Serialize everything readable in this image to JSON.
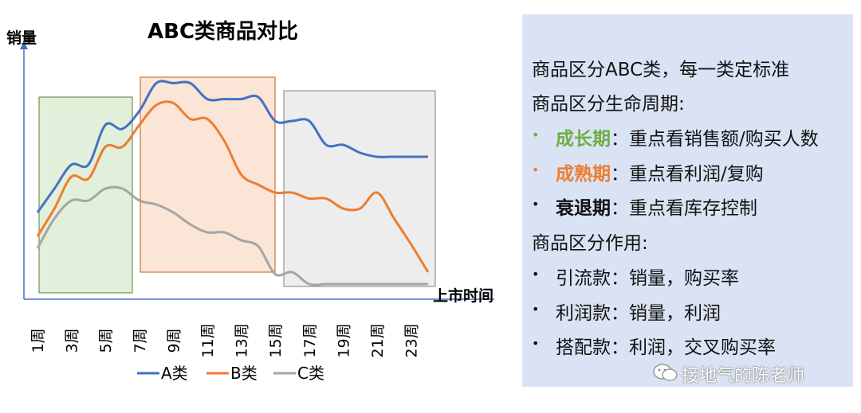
{
  "chart_data": {
    "type": "line",
    "title": "ABC类商品对比",
    "ylabel": "销量",
    "xlabel": "上市时间",
    "x_tick_labels": [
      "1周",
      "3周",
      "5周",
      "7周",
      "9周",
      "11周",
      "13周",
      "15周",
      "17周",
      "19周",
      "21周",
      "23周"
    ],
    "x_weeks": [
      1,
      2,
      3,
      4,
      5,
      6,
      7,
      8,
      9,
      10,
      11,
      12,
      13,
      14,
      15,
      16,
      17,
      18,
      19,
      20,
      21,
      22,
      23,
      24
    ],
    "y_range": [
      0,
      100
    ],
    "grid": false,
    "legend_position": "bottom",
    "series": [
      {
        "name": "A类",
        "color": "#4472c4",
        "values": [
          36,
          48,
          60,
          60,
          80,
          78,
          87,
          101,
          101,
          101,
          93,
          93,
          93,
          94,
          82,
          82,
          82,
          70,
          70,
          66,
          64,
          64,
          64,
          64
        ]
      },
      {
        "name": "B类",
        "color": "#ed7d31",
        "values": [
          24,
          38,
          54,
          53,
          69,
          69,
          80,
          90,
          91,
          83,
          83,
          72,
          55,
          50,
          46,
          46,
          43,
          43,
          38,
          38,
          46,
          33,
          20,
          6
        ]
      },
      {
        "name": "C类",
        "color": "#a5a5a5",
        "values": [
          18,
          33,
          42,
          42,
          48,
          48,
          42,
          40,
          36,
          30,
          26,
          26,
          22,
          19,
          5,
          6,
          0,
          0,
          0,
          0,
          0,
          0,
          0,
          0
        ]
      }
    ],
    "phase_regions": [
      {
        "label": "成长期",
        "color": "#70ad47",
        "week_start": 1,
        "week_end": 6
      },
      {
        "label": "成熟期",
        "color": "#ed7d31",
        "week_start": 7,
        "week_end": 15
      },
      {
        "label": "衰退期",
        "color": "#a5a5a5",
        "week_start": 15,
        "week_end": 24
      }
    ]
  },
  "panel": {
    "line1": "商品区分ABC类，每一类定标准",
    "line2": "商品区分生命周期:",
    "growth_label": "成长期",
    "growth_text": "：重点看销售额/购买人数",
    "mature_label": "成熟期",
    "mature_text": "：重点看利润/复购",
    "decline_label": "衰退期",
    "decline_text": "：重点看库存控制",
    "line6": "商品区分作用:",
    "use1": "引流款：销量，购买率",
    "use2": "利润款：销量，利润",
    "use3": "搭配款：利润，交叉购买率",
    "bullet_colors": {
      "growth": "#70ad47",
      "mature": "#ed7d31",
      "default": "#111111"
    }
  },
  "watermark": "接地气的陈老师"
}
